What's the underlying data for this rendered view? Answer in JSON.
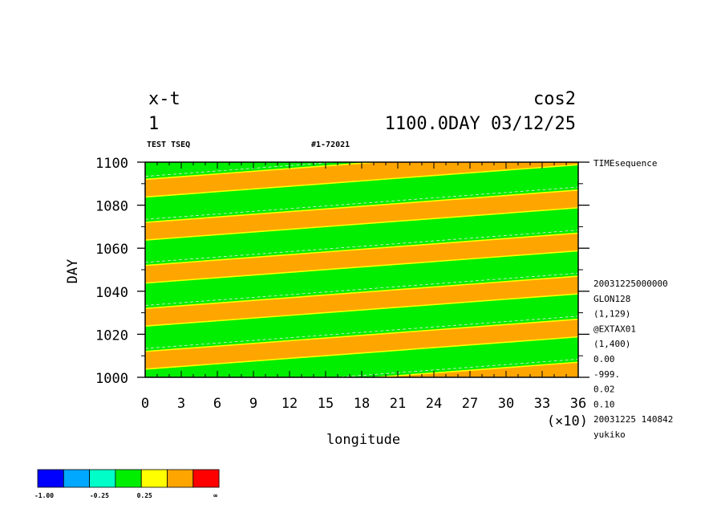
{
  "header": {
    "left_line1": "x-t",
    "left_line2": "1",
    "right_line1": "cos2",
    "right_line2": "1100.0DAY 03/12/25",
    "sub_left": "TEST TSEQ",
    "sub_center": "#1-72021"
  },
  "side_info": [
    "20031225000000",
    "GLON128",
    "(1,129)",
    "@EXTAX01",
    "(1,400)",
    "0.00",
    "-999.",
    "0.02",
    "0.10",
    "20031225 140842",
    "yukiko"
  ],
  "side_top": "TIMEsequence",
  "colors": {
    "orange": "#ffa500",
    "green": "#00ee00",
    "yellow": "#ffff00",
    "contour_dashed": "#e8e8e8"
  },
  "colorbar": {
    "colors": [
      "#0000ff",
      "#00a8ff",
      "#00ffc8",
      "#00ee00",
      "#ffff00",
      "#ffa500",
      "#ff0000"
    ],
    "labels": [
      "-1.00",
      "-0.25",
      "0.25",
      "∞"
    ]
  },
  "chart_data": {
    "type": "heatmap",
    "xlabel": "longitude",
    "ylabel": "DAY",
    "x_multiplier": "(×10)",
    "xlim": [
      0,
      36
    ],
    "ylim": [
      1000,
      1100
    ],
    "xticks": [
      0,
      3,
      6,
      9,
      12,
      15,
      18,
      21,
      24,
      27,
      30,
      33,
      36
    ],
    "yticks": [
      1000,
      1020,
      1040,
      1060,
      1080,
      1100
    ],
    "field": "cos2",
    "bands": {
      "description_shift_days_per_x_unit": 0.4167,
      "period_days": 20,
      "orange_day_offsets_at_x0": [
        1003.8,
        1023.8,
        1043.8,
        1063.8,
        1083.8,
        1103.8
      ],
      "orange_width_days": 8.2
    }
  }
}
